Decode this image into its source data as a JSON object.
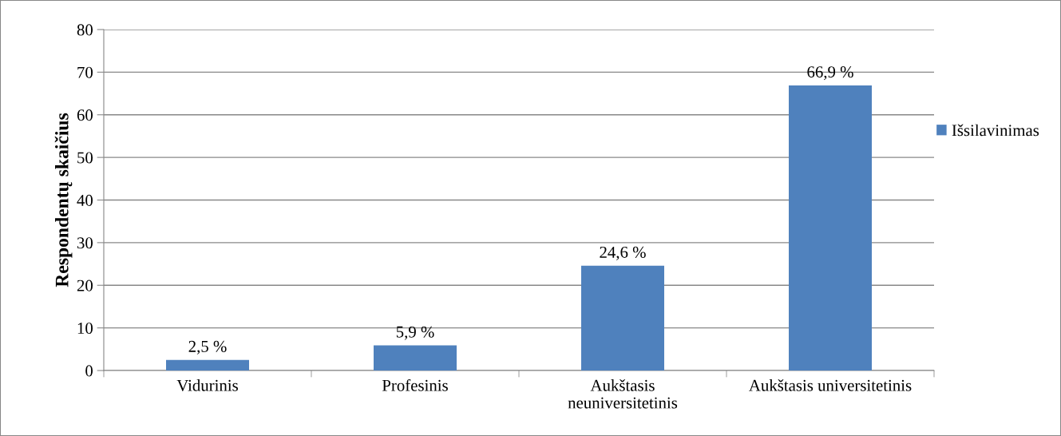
{
  "chart_data": {
    "type": "bar",
    "ylabel": "Respondentų skaičius",
    "categories": [
      "Vidurinis",
      "Profesinis",
      "Aukštasis\nneuniversitetinis",
      "Aukštasis universitetinis"
    ],
    "series": [
      {
        "name": "Išsilavinimas",
        "color": "#4f81bd",
        "values": [
          2.5,
          5.9,
          24.6,
          66.9
        ],
        "value_labels": [
          "2,5 %",
          "5,9 %",
          "24,6 %",
          "66,9 %"
        ]
      }
    ],
    "ylim": [
      0,
      80
    ],
    "yticks": [
      0,
      10,
      20,
      30,
      40,
      50,
      60,
      70,
      80
    ],
    "grid": "y",
    "legend": "right"
  }
}
